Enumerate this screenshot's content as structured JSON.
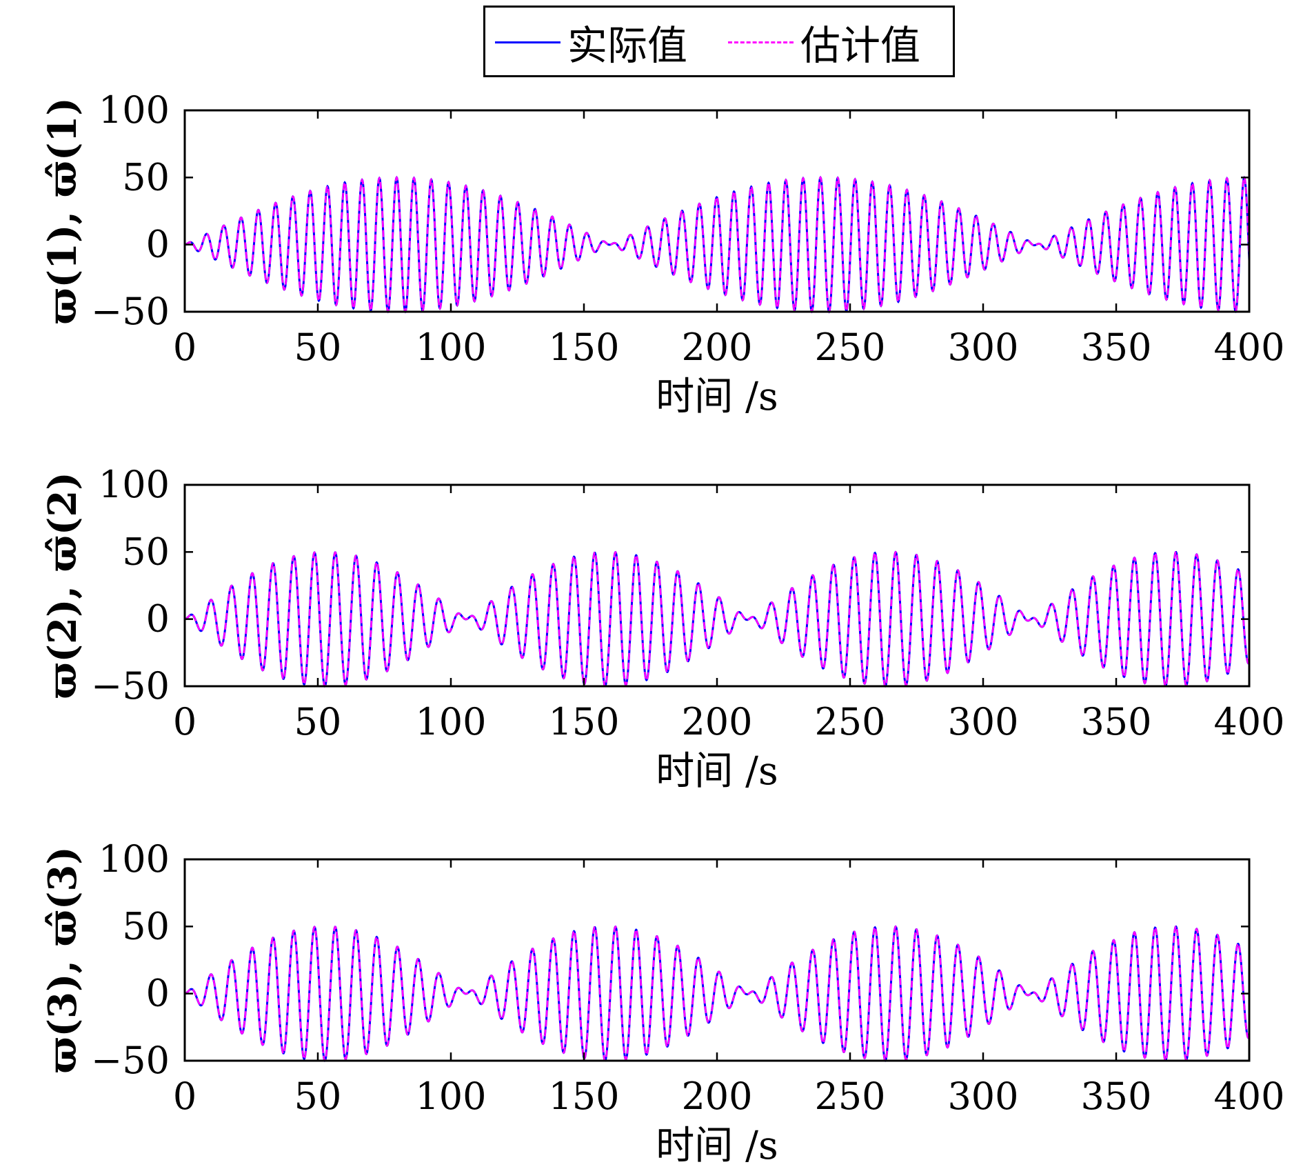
{
  "legend": {
    "actual_label": "实际值",
    "estimate_label": "估计值",
    "actual_color": "#0000ff",
    "estimate_color": "#ff00ff",
    "placement": "top-center"
  },
  "chart_data": [
    {
      "type": "line",
      "ylabel": "ϖ(1), ϖ̂(1)",
      "xlabel": "时间 /s",
      "xlim": [
        0,
        400
      ],
      "ylim": [
        -50,
        100
      ],
      "xticks": [
        "0",
        "50",
        "100",
        "150",
        "200",
        "250",
        "300",
        "350",
        "400"
      ],
      "yticks": [
        "−50",
        "0",
        "50",
        "100"
      ],
      "envelope": "amplitude 50·|sin(π·t/160)|, carrier period ≈ 6.5 s",
      "envelope_period": 160,
      "carrier_period": 6.5,
      "amplitude": 50,
      "series": [
        {
          "name": "实际值",
          "color": "#0000ff",
          "style": "solid"
        },
        {
          "name": "估计值",
          "color": "#ff00ff",
          "style": "dashed"
        }
      ],
      "grid": false
    },
    {
      "type": "line",
      "ylabel": "ϖ(2), ϖ̂(2)",
      "xlabel": "时间 /s",
      "xlim": [
        0,
        400
      ],
      "ylim": [
        -50,
        100
      ],
      "xticks": [
        "0",
        "50",
        "100",
        "150",
        "200",
        "250",
        "300",
        "350",
        "400"
      ],
      "yticks": [
        "−50",
        "0",
        "50",
        "100"
      ],
      "envelope": "amplitude 50·|sin(π·t/106)|, carrier period ≈ 7.8 s",
      "envelope_period": 106,
      "carrier_period": 7.8,
      "amplitude": 50,
      "series": [
        {
          "name": "实际值",
          "color": "#0000ff",
          "style": "solid"
        },
        {
          "name": "估计值",
          "color": "#ff00ff",
          "style": "dashed"
        }
      ],
      "grid": false
    },
    {
      "type": "line",
      "ylabel": "ϖ(3), ϖ̂(3)",
      "xlabel": "时间 /s",
      "xlim": [
        0,
        400
      ],
      "ylim": [
        -50,
        100
      ],
      "xticks": [
        "0",
        "50",
        "100",
        "150",
        "200",
        "250",
        "300",
        "350",
        "400"
      ],
      "yticks": [
        "−50",
        "0",
        "50",
        "100"
      ],
      "envelope": "amplitude 50·|sin(π·t/106)|, carrier period ≈ 7.8 s",
      "envelope_period": 106,
      "carrier_period": 7.8,
      "amplitude": 50,
      "series": [
        {
          "name": "实际值",
          "color": "#0000ff",
          "style": "solid"
        },
        {
          "name": "估计值",
          "color": "#ff00ff",
          "style": "dashed"
        }
      ],
      "grid": false
    }
  ]
}
